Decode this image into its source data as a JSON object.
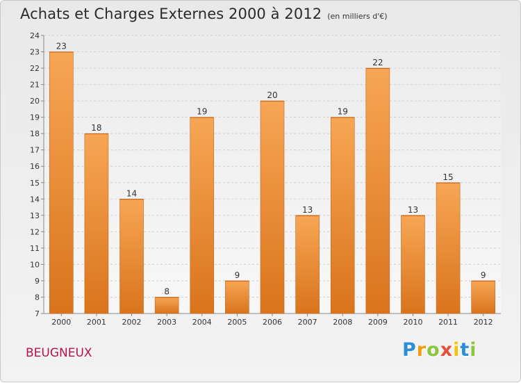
{
  "header": {
    "title": "Achats et Charges Externes 2000 à 2012",
    "subtitle": "(en milliers d'€)"
  },
  "footer": {
    "place": "BEUGNEUX",
    "logo": {
      "letters": [
        "P",
        "r",
        "o",
        "x",
        "i",
        "t",
        "i"
      ],
      "colors": [
        "#2a8fd6",
        "#f39c12",
        "#8cc63f",
        "#e74c3c",
        "#f1c40f",
        "#2a8fd6",
        "#8cc63f"
      ]
    }
  },
  "chart_data": {
    "type": "bar",
    "title": "Achats et Charges Externes 2000 à 2012",
    "subtitle": "(en milliers d'€)",
    "categories": [
      "2000",
      "2001",
      "2002",
      "2003",
      "2004",
      "2005",
      "2006",
      "2007",
      "2008",
      "2009",
      "2010",
      "2011",
      "2012"
    ],
    "values": [
      23,
      18,
      14,
      8,
      19,
      9,
      20,
      13,
      19,
      22,
      13,
      15,
      9
    ],
    "ylim": [
      7,
      24
    ],
    "yticks": [
      7,
      8,
      9,
      10,
      11,
      12,
      13,
      14,
      15,
      16,
      17,
      18,
      19,
      20,
      21,
      22,
      23,
      24
    ],
    "grid": true,
    "bar_color": "#f0913a",
    "data_labels": true
  }
}
